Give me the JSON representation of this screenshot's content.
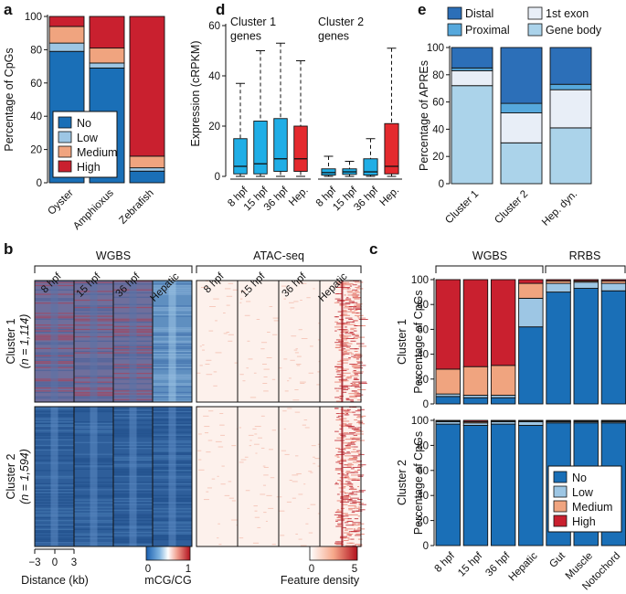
{
  "colors": {
    "No": "#1a6fb7",
    "Low": "#9dc6e4",
    "Medium": "#f0a47f",
    "High": "#c9202f",
    "Distal": "#2c6fb8",
    "Proximal": "#56a8dc",
    "1st exon": "#e8eef7",
    "Gene body": "#abd3ea",
    "box_blue": "#20aee6",
    "box_red": "#e42a2e"
  },
  "panel_labels": {
    "a": "a",
    "b": "b",
    "c": "c",
    "d": "d",
    "e": "e"
  },
  "chart_data": [
    {
      "id": "a",
      "type": "bar",
      "stacked": true,
      "ylabel": "Percentage of CpGs",
      "ylim": [
        0,
        100
      ],
      "yticks": [
        0,
        20,
        40,
        60,
        80,
        100
      ],
      "categories": [
        "Oyster",
        "Amphioxus",
        "Zebrafish"
      ],
      "series": [
        {
          "name": "No",
          "values": [
            79,
            69,
            7
          ]
        },
        {
          "name": "Low",
          "values": [
            5,
            3,
            2
          ]
        },
        {
          "name": "Medium",
          "values": [
            10,
            9,
            7
          ]
        },
        {
          "name": "High",
          "values": [
            6,
            19,
            84
          ]
        }
      ],
      "legend": [
        "No",
        "Low",
        "Medium",
        "High"
      ],
      "legend_position": "lower-middle"
    },
    {
      "id": "d",
      "type": "box",
      "ylabel": "Expression (cRPKM)",
      "ylim": [
        0,
        60
      ],
      "yticks": [
        0,
        20,
        40,
        60
      ],
      "groups": [
        {
          "title": "Cluster 1 genes",
          "categories": [
            "8 hpf",
            "15 hpf",
            "36 hpf",
            "Hep."
          ],
          "boxes": [
            {
              "min": 0,
              "q1": 1,
              "median": 4,
              "q3": 15,
              "max": 37,
              "color": "box_blue"
            },
            {
              "min": 0,
              "q1": 1,
              "median": 5,
              "q3": 22,
              "max": 50,
              "color": "box_blue"
            },
            {
              "min": 0,
              "q1": 2,
              "median": 7,
              "q3": 23,
              "max": 53,
              "color": "box_blue"
            },
            {
              "min": 0,
              "q1": 2,
              "median": 7,
              "q3": 20,
              "max": 46,
              "color": "box_red"
            }
          ]
        },
        {
          "title": "Cluster 2 genes",
          "categories": [
            "8 hpf",
            "15 hpf",
            "36 hpf",
            "Hep."
          ],
          "boxes": [
            {
              "min": 0,
              "q1": 0.5,
              "median": 1.5,
              "q3": 3,
              "max": 8,
              "color": "box_blue"
            },
            {
              "min": 0,
              "q1": 0.8,
              "median": 1.8,
              "q3": 3,
              "max": 6,
              "color": "box_blue"
            },
            {
              "min": 0,
              "q1": 0.5,
              "median": 1.8,
              "q3": 7,
              "max": 15,
              "color": "box_blue"
            },
            {
              "min": 0,
              "q1": 1,
              "median": 4,
              "q3": 21,
              "max": 51,
              "color": "box_red"
            }
          ]
        }
      ]
    },
    {
      "id": "e",
      "type": "bar",
      "stacked": true,
      "ylabel": "Percentage of APREs",
      "ylim": [
        0,
        100
      ],
      "yticks": [
        0,
        20,
        40,
        60,
        80,
        100
      ],
      "categories": [
        "Cluster 1",
        "Cluster 2",
        "Hep. dyn."
      ],
      "series": [
        {
          "name": "Gene body",
          "values": [
            72,
            30,
            41
          ]
        },
        {
          "name": "1st exon",
          "values": [
            11,
            22,
            28
          ]
        },
        {
          "name": "Proximal",
          "values": [
            2,
            7,
            4
          ]
        },
        {
          "name": "Distal",
          "values": [
            15,
            41,
            27
          ]
        }
      ],
      "legend": [
        "Distal",
        "1st exon",
        "Proximal",
        "Gene body"
      ],
      "legend_position": "top"
    },
    {
      "id": "c1",
      "type": "bar",
      "stacked": true,
      "row_label": "Cluster 1",
      "ylabel": "Percentage of CpGs",
      "ylim": [
        0,
        100
      ],
      "yticks": [
        0,
        20,
        40,
        60,
        80,
        100
      ],
      "categories": [
        "8 hpf",
        "15 hpf",
        "36 hpf",
        "Hepatic",
        "Gut",
        "Muscle",
        "Notochord"
      ],
      "series": [
        {
          "name": "No",
          "values": [
            6,
            5,
            5,
            62,
            90,
            93,
            91
          ]
        },
        {
          "name": "Low",
          "values": [
            2,
            2,
            2,
            23,
            7,
            5,
            6
          ]
        },
        {
          "name": "Medium",
          "values": [
            20,
            23,
            24,
            12,
            2,
            1,
            2
          ]
        },
        {
          "name": "High",
          "values": [
            72,
            70,
            69,
            3,
            1,
            1,
            1
          ]
        }
      ]
    },
    {
      "id": "c2",
      "type": "bar",
      "stacked": true,
      "row_label": "Cluster 2",
      "ylabel": "Percentage of CpGs",
      "ylim": [
        0,
        100
      ],
      "yticks": [
        0,
        20,
        40,
        60,
        80,
        100
      ],
      "categories": [
        "8 hpf",
        "15 hpf",
        "36 hpf",
        "Hepatic",
        "Gut",
        "Muscle",
        "Notochord"
      ],
      "series": [
        {
          "name": "No",
          "values": [
            97,
            96,
            97,
            96,
            98,
            98,
            98
          ]
        },
        {
          "name": "Low",
          "values": [
            2,
            2,
            2,
            3,
            1,
            1,
            1
          ]
        },
        {
          "name": "Medium",
          "values": [
            0.5,
            1,
            0.5,
            0.5,
            0.5,
            0.5,
            0.5
          ]
        },
        {
          "name": "High",
          "values": [
            0.5,
            1,
            0.5,
            0.5,
            0.5,
            0.5,
            0.5
          ]
        }
      ],
      "legend": [
        "No",
        "Low",
        "Medium",
        "High"
      ],
      "legend_position": "lower-right"
    }
  ],
  "panel_c": {
    "group_labels": [
      "WGBS",
      "RRBS"
    ]
  },
  "panel_b": {
    "group_labels": [
      "WGBS",
      "ATAC-seq"
    ],
    "columns": [
      "8 hpf",
      "15 hpf",
      "36 hpf",
      "Hepatic",
      "8 hpf",
      "15 hpf",
      "36 hpf",
      "Hepatic"
    ],
    "rows": [
      {
        "label": "Cluster 1",
        "n": "(n = 1,114)"
      },
      {
        "label": "Cluster 2",
        "n": "(n = 1,594)"
      }
    ],
    "distance_ticks": [
      "−3",
      "0",
      "3"
    ],
    "distance_label": "Distance (kb)",
    "mcg_ticks": [
      "0",
      "1"
    ],
    "mcg_label": "mCG/CG",
    "density_ticks": [
      "0",
      "5"
    ],
    "density_label": "Feature density"
  }
}
